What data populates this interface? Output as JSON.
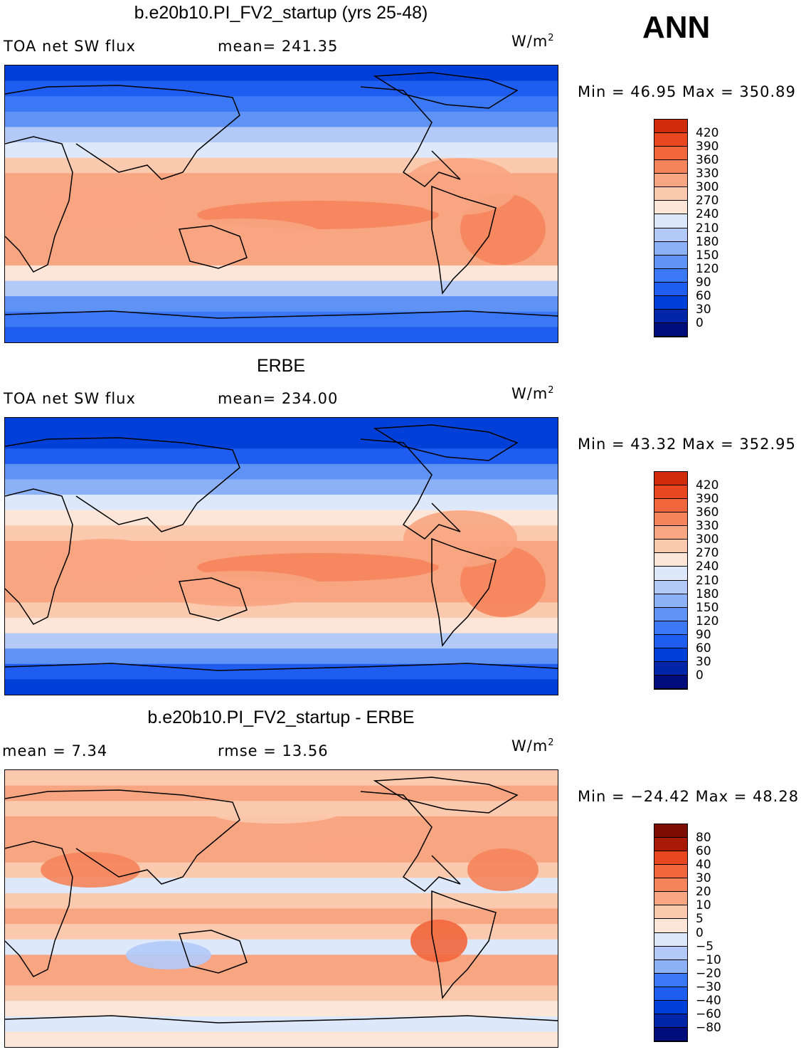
{
  "season": "ANN",
  "colors": {
    "levels_main": [
      "#000d7a",
      "#0025a8",
      "#0040d9",
      "#1f5df0",
      "#3b78f5",
      "#5e93f5",
      "#8cb1f7",
      "#b3caf8",
      "#dde9fb",
      "#fde6d8",
      "#fbc9ad",
      "#f8a581",
      "#f5845b",
      "#f2663c",
      "#e9471f",
      "#d12b0d",
      "#a81a06",
      "#7d0c03"
    ],
    "levels_diff": [
      "#000d7a",
      "#0025a8",
      "#0040d9",
      "#1f5df0",
      "#3b78f5",
      "#8cb1f7",
      "#b3caf8",
      "#dde9fb",
      "#fde6d8",
      "#fbc9ad",
      "#f8a581",
      "#f5845b",
      "#f2663c",
      "#e9471f",
      "#a81a06",
      "#7d0c03"
    ]
  },
  "panels": [
    {
      "title": "b.e20b10.PI_FV2_startup (yrs 25-48)",
      "left_label": "TOA net SW flux",
      "center_label": "mean=  241.35",
      "unit_base": "W/m",
      "unit_exp": "2",
      "min_max": "Min =   46.95  Max  =  350.89"
    },
    {
      "title": "ERBE",
      "left_label": "TOA net SW flux",
      "center_label": "mean=  234.00",
      "unit_base": "W/m",
      "unit_exp": "2",
      "min_max": "Min =   43.32  Max  =  352.95"
    },
    {
      "title": "b.e20b10.PI_FV2_startup - ERBE",
      "left_label": "mean  =      7.34",
      "center_label": "rmse  =    13.56",
      "unit_base": "W/m",
      "unit_exp": "2",
      "min_max": "Min  =  −24.42  Max  =    48.28"
    }
  ],
  "chart_data": [
    {
      "type": "heatmap",
      "title": "b.e20b10.PI_FV2_startup (yrs 25-48)",
      "variable": "TOA net SW flux",
      "units": "W/m2",
      "mean": 241.35,
      "min": 46.95,
      "max": 350.89,
      "colorbar_levels": [
        "420",
        "390",
        "360",
        "330",
        "300",
        "270",
        "240",
        "210",
        "180",
        "150",
        "120",
        "90",
        "60",
        "30",
        "0"
      ],
      "zonal_profile": [
        40,
        60,
        90,
        130,
        180,
        230,
        270,
        300,
        310,
        320,
        320,
        310,
        300,
        260,
        200,
        140,
        90,
        60
      ]
    },
    {
      "type": "heatmap",
      "title": "ERBE",
      "variable": "TOA net SW flux",
      "units": "W/m2",
      "mean": 234.0,
      "min": 43.32,
      "max": 352.95,
      "colorbar_levels": [
        "420",
        "390",
        "360",
        "330",
        "300",
        "270",
        "240",
        "210",
        "180",
        "150",
        "120",
        "90",
        "60",
        "30",
        "0"
      ],
      "zonal_profile": [
        35,
        55,
        85,
        125,
        175,
        225,
        265,
        295,
        305,
        315,
        315,
        305,
        290,
        250,
        190,
        130,
        80,
        55
      ]
    },
    {
      "type": "heatmap",
      "title": "b.e20b10.PI_FV2_startup - ERBE",
      "units": "W/m2",
      "mean": 7.34,
      "rmse": 13.56,
      "min": -24.42,
      "max": 48.28,
      "colorbar_levels": [
        "80",
        "60",
        "40",
        "30",
        "20",
        "10",
        "5",
        "0",
        "−5",
        "−10",
        "−20",
        "−30",
        "−40",
        "−60",
        "−80"
      ],
      "zonal_profile": [
        5,
        10,
        8,
        12,
        15,
        10,
        5,
        -3,
        8,
        12,
        6,
        -5,
        10,
        15,
        8,
        3,
        -2,
        2
      ]
    }
  ]
}
